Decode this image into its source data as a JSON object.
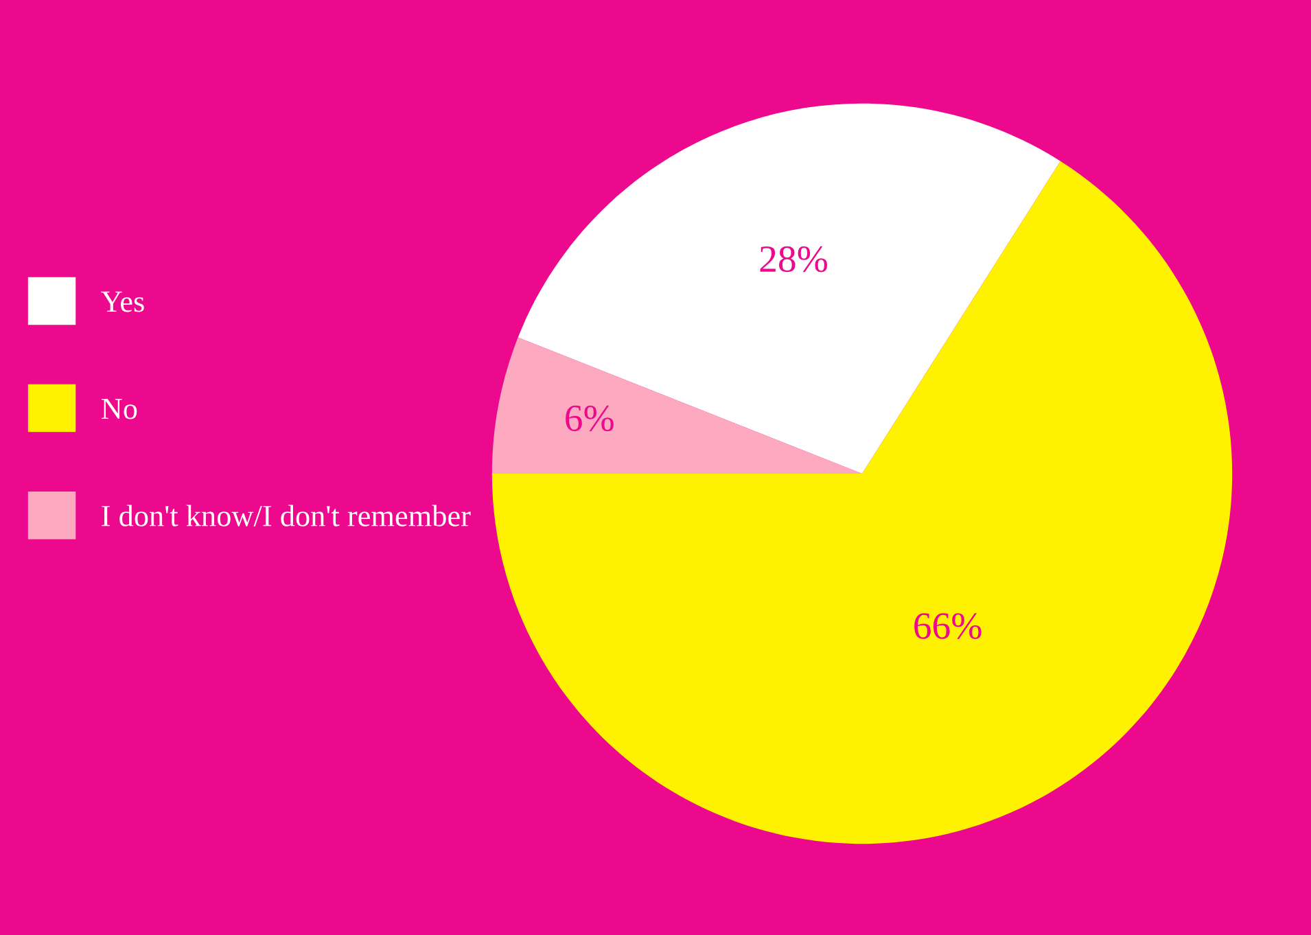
{
  "chart_data": {
    "type": "pie",
    "categories": [
      "Yes",
      "No",
      "I don't know/I don't remember"
    ],
    "values": [
      28,
      66,
      6
    ],
    "colors": [
      "#ffffff",
      "#fff200",
      "#fdaac0"
    ],
    "value_labels": [
      "28%",
      "66%",
      "6%"
    ],
    "legend": "left"
  }
}
